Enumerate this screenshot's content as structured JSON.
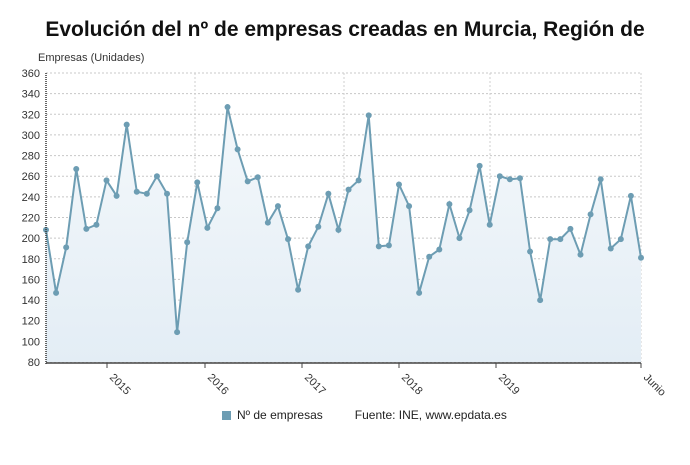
{
  "chart_data": {
    "type": "area",
    "title": "Evolución del nº de empresas creadas en Murcia, Región de",
    "ylabel": "Empresas (Unidades)",
    "xlabel": "",
    "ylim": [
      80,
      360
    ],
    "yticks": [
      80,
      100,
      120,
      140,
      160,
      180,
      200,
      220,
      240,
      260,
      280,
      300,
      320,
      340,
      360
    ],
    "xtick_labels": [
      "2015",
      "2016",
      "2017",
      "2018",
      "2019",
      "Junio"
    ],
    "grid": true,
    "legend_position": "bottom",
    "series": [
      {
        "name": "Nº de empresas",
        "color": "#6d9db3",
        "values": [
          208,
          147,
          191,
          267,
          209,
          213,
          256,
          241,
          310,
          245,
          243,
          260,
          243,
          109,
          196,
          254,
          210,
          229,
          327,
          286,
          255,
          259,
          215,
          231,
          199,
          150,
          192,
          211,
          243,
          208,
          247,
          256,
          319,
          192,
          193,
          252,
          231,
          147,
          182,
          189,
          233,
          200,
          227,
          270,
          213,
          260,
          257,
          258,
          187,
          140,
          199,
          199,
          209,
          184,
          223,
          257,
          190,
          199,
          241,
          181
        ]
      }
    ]
  },
  "legend": {
    "label": "Nº de empresas"
  },
  "source": "Fuente: INE, www.epdata.es"
}
